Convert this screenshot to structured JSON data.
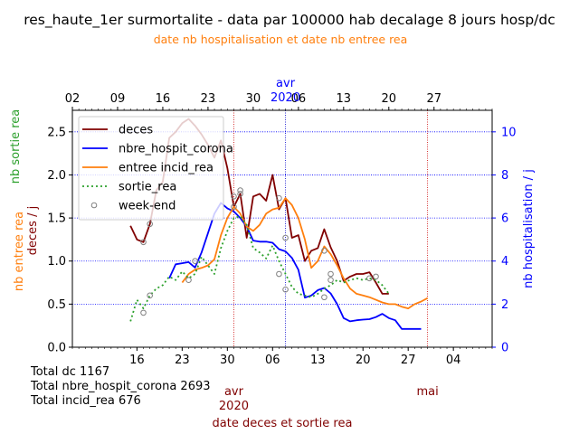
{
  "colors": {
    "deces": "#800000",
    "nbre_hospit_corona": "#0000ff",
    "entree_incid_rea": "#ff7f0e",
    "sortie_rea": "#2ca02c",
    "week_end": "#808080",
    "top_axis": "#0000ff",
    "top_label": "#ff7f0e",
    "bottom_label": "#800000",
    "right_axis": "#0000ff"
  },
  "chart_data": {
    "type": "line",
    "title": "res_haute_1er surmortalite - data par 100000 hab decalage 8 jours hosp/dc",
    "top_axis_label": "date nb hospitalisation et date nb entree rea",
    "bottom_axis_label": "date deces et sortie rea",
    "left_axis_label_green": "nb sortie rea",
    "left_axis_label_orange": "nb entree rea",
    "left_axis_label_darkred": "deces / j",
    "right_axis_label": "nb hospitalisation / j",
    "x_axis": {
      "start_day": 0,
      "end_day": 65,
      "note": "day 0 = 2020-03-06 on bottom axis; top axis shifted by -8 days"
    },
    "bottom_ticks": [
      {
        "day": 10,
        "label": "16"
      },
      {
        "day": 17,
        "label": "23"
      },
      {
        "day": 24,
        "label": "30"
      },
      {
        "day": 31,
        "label": "06"
      },
      {
        "day": 38,
        "label": "13"
      },
      {
        "day": 45,
        "label": "20"
      },
      {
        "day": 52,
        "label": "27"
      },
      {
        "day": 59,
        "label": "04"
      }
    ],
    "bottom_month_labels": [
      {
        "day": 25,
        "label": "avr",
        "sub": "2020"
      },
      {
        "day": 55,
        "label": "mai",
        "sub": ""
      }
    ],
    "top_ticks": [
      {
        "day": 0,
        "label": "02"
      },
      {
        "day": 7,
        "label": "09"
      },
      {
        "day": 14,
        "label": "16"
      },
      {
        "day": 21,
        "label": "23"
      },
      {
        "day": 28,
        "label": "30"
      },
      {
        "day": 35,
        "label": "06"
      },
      {
        "day": 42,
        "label": "13"
      },
      {
        "day": 49,
        "label": "20"
      },
      {
        "day": 56,
        "label": "27"
      }
    ],
    "top_month_label": {
      "day": 33,
      "label": "avr",
      "sub": "2020"
    },
    "vlines_bottom_red": [
      25,
      55
    ],
    "vlines_top_blue": [
      33
    ],
    "y_left": {
      "min": 0,
      "max": 2.75,
      "ticks": [
        "0.0",
        "0.5",
        "1.0",
        "1.5",
        "2.0",
        "2.5"
      ]
    },
    "y_right": {
      "min": 0,
      "max": 11.0,
      "ticks": [
        "0",
        "2",
        "4",
        "6",
        "8",
        "10"
      ]
    },
    "legend": [
      "deces",
      "nbre_hospit_corona",
      "entree incid_rea",
      "sortie_rea",
      "week-end"
    ],
    "legend_placement": "top-left",
    "series": [
      {
        "name": "deces",
        "axis": "left",
        "x": [
          9,
          10,
          11,
          12,
          13,
          14,
          15,
          16,
          17,
          18,
          19,
          20,
          21,
          22,
          23,
          24,
          25,
          26,
          27,
          28,
          29,
          30,
          31,
          32,
          33,
          34,
          35,
          36,
          37,
          38,
          39,
          40,
          41,
          42,
          43,
          44,
          45,
          46,
          47,
          48,
          49
        ],
        "y": [
          1.41,
          1.25,
          1.22,
          1.43,
          1.82,
          1.92,
          2.43,
          2.5,
          2.6,
          2.65,
          2.57,
          2.47,
          2.35,
          2.2,
          2.4,
          2.08,
          1.63,
          1.78,
          1.27,
          1.75,
          1.78,
          1.7,
          2.0,
          1.6,
          1.73,
          1.27,
          1.3,
          1.0,
          1.12,
          1.15,
          1.37,
          1.16,
          1.0,
          0.77,
          0.82,
          0.85,
          0.85,
          0.87,
          0.75,
          0.62,
          0.62
        ]
      },
      {
        "name": "nbre_hospit_corona",
        "axis": "right",
        "x": [
          15,
          16,
          17,
          18,
          19,
          20,
          21,
          22,
          23,
          24,
          25,
          26,
          27,
          28,
          29,
          30,
          31,
          32,
          33,
          34,
          35,
          36,
          37,
          38,
          39,
          40,
          41,
          42,
          43,
          44,
          45,
          46,
          47,
          48,
          49,
          50,
          51,
          52,
          53,
          54
        ],
        "y": [
          3.2,
          3.85,
          3.9,
          3.95,
          3.7,
          4.4,
          5.3,
          6.2,
          6.7,
          6.45,
          6.3,
          6.0,
          5.6,
          4.95,
          4.9,
          4.9,
          4.85,
          4.55,
          4.45,
          4.15,
          3.6,
          2.3,
          2.4,
          2.65,
          2.75,
          2.5,
          2.0,
          1.35,
          1.2,
          1.25,
          1.28,
          1.3,
          1.4,
          1.55,
          1.35,
          1.25,
          0.85,
          0.85,
          0.85,
          0.85
        ]
      },
      {
        "name": "entree incid_rea",
        "axis": "left",
        "x": [
          17,
          18,
          19,
          20,
          21,
          22,
          23,
          24,
          25,
          26,
          27,
          28,
          29,
          30,
          31,
          32,
          33,
          34,
          35,
          36,
          37,
          38,
          39,
          40,
          41,
          42,
          43,
          44,
          45,
          46,
          47,
          48,
          49,
          50,
          51,
          52,
          53,
          54,
          55
        ],
        "y": [
          0.75,
          0.85,
          0.9,
          0.92,
          0.95,
          1.02,
          1.3,
          1.5,
          1.63,
          1.55,
          1.4,
          1.35,
          1.42,
          1.55,
          1.6,
          1.62,
          1.73,
          1.65,
          1.5,
          1.25,
          0.92,
          1.0,
          1.17,
          1.08,
          0.95,
          0.8,
          0.68,
          0.62,
          0.6,
          0.58,
          0.55,
          0.52,
          0.5,
          0.5,
          0.47,
          0.45,
          0.5,
          0.53,
          0.57
        ]
      },
      {
        "name": "sortie_rea",
        "axis": "left",
        "x": [
          9,
          10,
          11,
          12,
          13,
          14,
          15,
          16,
          17,
          18,
          19,
          20,
          21,
          22,
          23,
          24,
          25,
          26,
          27,
          28,
          29,
          30,
          31,
          32,
          33,
          34,
          35,
          36,
          37,
          38,
          39,
          40,
          41,
          42,
          43,
          44,
          45,
          46,
          47,
          48,
          49
        ],
        "y": [
          0.3,
          0.55,
          0.45,
          0.6,
          0.68,
          0.72,
          0.82,
          0.78,
          0.88,
          0.8,
          0.85,
          1.05,
          0.95,
          0.85,
          1.15,
          1.35,
          1.5,
          1.52,
          1.42,
          1.15,
          1.1,
          1.03,
          1.18,
          1.0,
          0.85,
          0.7,
          0.62,
          0.6,
          0.58,
          0.62,
          0.68,
          0.72,
          0.78,
          0.75,
          0.78,
          0.8,
          0.78,
          0.8,
          0.78,
          0.72,
          0.62
        ]
      }
    ],
    "week_end_points": [
      {
        "axis": "left",
        "x": 11,
        "y": 1.22
      },
      {
        "axis": "left",
        "x": 12,
        "y": 1.43
      },
      {
        "axis": "left",
        "x": 18,
        "y": 0.78
      },
      {
        "axis": "left",
        "x": 19,
        "y": 1.0
      },
      {
        "axis": "left",
        "x": 25,
        "y": 1.63
      },
      {
        "axis": "left",
        "x": 26,
        "y": 1.78
      },
      {
        "axis": "left",
        "x": 32,
        "y": 1.73
      },
      {
        "axis": "left",
        "x": 33,
        "y": 1.27
      },
      {
        "axis": "left",
        "x": 39,
        "y": 1.12
      },
      {
        "axis": "left",
        "x": 40,
        "y": 0.85
      },
      {
        "axis": "left",
        "x": 46,
        "y": 0.8
      },
      {
        "axis": "left",
        "x": 47,
        "y": 0.82
      },
      {
        "axis": "left",
        "x": 11,
        "y": 0.4
      },
      {
        "axis": "left",
        "x": 12,
        "y": 0.6
      },
      {
        "axis": "left",
        "x": 25,
        "y": 1.75
      },
      {
        "axis": "left",
        "x": 26,
        "y": 1.82
      },
      {
        "axis": "left",
        "x": 32,
        "y": 0.85
      },
      {
        "axis": "left",
        "x": 33,
        "y": 0.67
      },
      {
        "axis": "left",
        "x": 39,
        "y": 0.58
      },
      {
        "axis": "left",
        "x": 40,
        "y": 0.78
      }
    ]
  },
  "totals": [
    "Total dc 1167",
    "Total nbre_hospit_corona 2693",
    "Total incid_rea 676"
  ]
}
